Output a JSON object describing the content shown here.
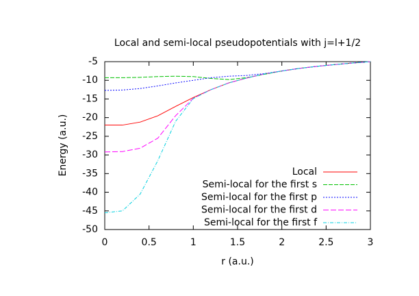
{
  "chart_data": {
    "type": "line",
    "title": "Local and semi-local pseudopotentials with j=l+1/2",
    "xlabel": "r (a.u.)",
    "ylabel": "Energy (a.u.)",
    "x": [
      0,
      0.2,
      0.4,
      0.6,
      0.8,
      1.0,
      1.2,
      1.4,
      1.6,
      1.8,
      2.0,
      2.2,
      2.4,
      2.6,
      2.8,
      3.0
    ],
    "series": [
      {
        "name": "Local",
        "color": "#ff0000",
        "dash": "",
        "values": [
          -22,
          -22,
          -21.2,
          -19.5,
          -17,
          -14.6,
          -12.5,
          -10.7,
          -9.4,
          -8.3,
          -7.5,
          -6.8,
          -6.25,
          -5.77,
          -5.36,
          -5
        ]
      },
      {
        "name": "Semi-local for the first s",
        "color": "#00c000",
        "dash": "6 2",
        "values": [
          -9.3,
          -9.3,
          -9.2,
          -9.0,
          -8.9,
          -9.0,
          -9.5,
          -9.8,
          -9.3,
          -8.4,
          -7.5,
          -6.8,
          -6.25,
          -5.77,
          -5.36,
          -5
        ]
      },
      {
        "name": "Semi-local for the first p",
        "color": "#0000ff",
        "dash": "2 2",
        "values": [
          -12.7,
          -12.6,
          -12.2,
          -11.5,
          -10.7,
          -10.0,
          -9.3,
          -8.9,
          -8.7,
          -8.2,
          -7.5,
          -6.8,
          -6.25,
          -5.77,
          -5.36,
          -5
        ]
      },
      {
        "name": "Semi-local for the first d",
        "color": "#ff00ff",
        "dash": "8 3",
        "values": [
          -29.2,
          -29.1,
          -28.2,
          -25.5,
          -19.5,
          -14.8,
          -12.5,
          -10.7,
          -9.4,
          -8.3,
          -7.5,
          -6.8,
          -6.25,
          -5.77,
          -5.36,
          -5
        ]
      },
      {
        "name": "Semi-local for the first f",
        "color": "#00d0e0",
        "dash": "5 2 1 2",
        "values": [
          -45.5,
          -45.0,
          -40.5,
          -31.5,
          -21,
          -14.9,
          -12.5,
          -10.7,
          -9.4,
          -8.3,
          -7.5,
          -6.8,
          -6.25,
          -5.77,
          -5.36,
          -5
        ]
      }
    ],
    "xlim": [
      0,
      3
    ],
    "ylim": [
      -50,
      -5
    ],
    "xticks": [
      0,
      0.5,
      1,
      1.5,
      2,
      2.5,
      3
    ],
    "yticks": [
      -50,
      -45,
      -40,
      -35,
      -30,
      -25,
      -20,
      -15,
      -10,
      -5
    ],
    "legend": "bottom-right"
  }
}
